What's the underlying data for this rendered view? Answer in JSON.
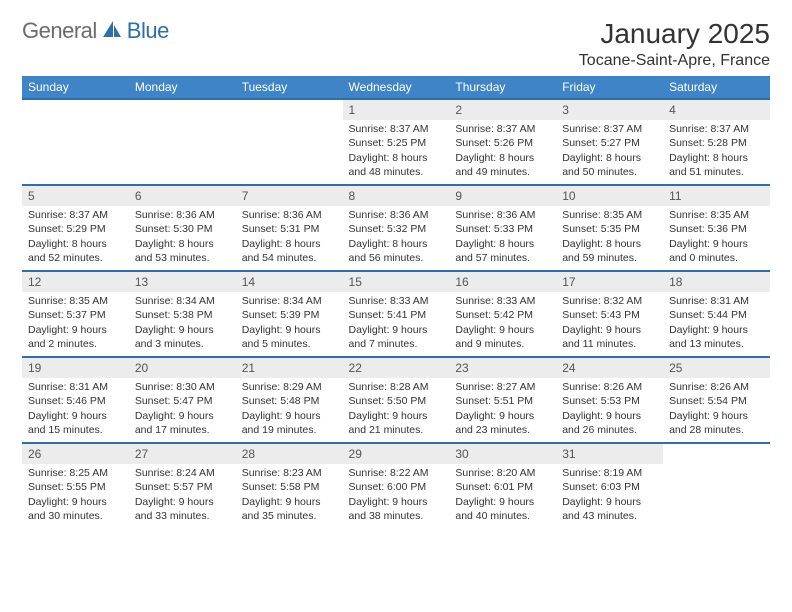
{
  "brand": {
    "general": "General",
    "blue": "Blue"
  },
  "title": "January 2025",
  "location": "Tocane-Saint-Apre, France",
  "colors": {
    "header_bg": "#3e84c6",
    "header_text": "#ffffff",
    "accent_border": "#2f6fa8",
    "daynum_bg": "#ececec",
    "body_text": "#333333",
    "logo_gray": "#6b6b6b",
    "logo_blue": "#2f6fa8",
    "page_bg": "#ffffff"
  },
  "typography": {
    "month_title_fontsize": 28,
    "location_fontsize": 16,
    "dayhead_fontsize": 12,
    "cell_fontsize": 10.5,
    "logo_fontsize": 22
  },
  "day_names": [
    "Sunday",
    "Monday",
    "Tuesday",
    "Wednesday",
    "Thursday",
    "Friday",
    "Saturday"
  ],
  "weeks": [
    [
      {
        "n": "",
        "sr": "",
        "ss": "",
        "dl": ""
      },
      {
        "n": "",
        "sr": "",
        "ss": "",
        "dl": ""
      },
      {
        "n": "",
        "sr": "",
        "ss": "",
        "dl": ""
      },
      {
        "n": "1",
        "sr": "Sunrise: 8:37 AM",
        "ss": "Sunset: 5:25 PM",
        "dl": "Daylight: 8 hours and 48 minutes."
      },
      {
        "n": "2",
        "sr": "Sunrise: 8:37 AM",
        "ss": "Sunset: 5:26 PM",
        "dl": "Daylight: 8 hours and 49 minutes."
      },
      {
        "n": "3",
        "sr": "Sunrise: 8:37 AM",
        "ss": "Sunset: 5:27 PM",
        "dl": "Daylight: 8 hours and 50 minutes."
      },
      {
        "n": "4",
        "sr": "Sunrise: 8:37 AM",
        "ss": "Sunset: 5:28 PM",
        "dl": "Daylight: 8 hours and 51 minutes."
      }
    ],
    [
      {
        "n": "5",
        "sr": "Sunrise: 8:37 AM",
        "ss": "Sunset: 5:29 PM",
        "dl": "Daylight: 8 hours and 52 minutes."
      },
      {
        "n": "6",
        "sr": "Sunrise: 8:36 AM",
        "ss": "Sunset: 5:30 PM",
        "dl": "Daylight: 8 hours and 53 minutes."
      },
      {
        "n": "7",
        "sr": "Sunrise: 8:36 AM",
        "ss": "Sunset: 5:31 PM",
        "dl": "Daylight: 8 hours and 54 minutes."
      },
      {
        "n": "8",
        "sr": "Sunrise: 8:36 AM",
        "ss": "Sunset: 5:32 PM",
        "dl": "Daylight: 8 hours and 56 minutes."
      },
      {
        "n": "9",
        "sr": "Sunrise: 8:36 AM",
        "ss": "Sunset: 5:33 PM",
        "dl": "Daylight: 8 hours and 57 minutes."
      },
      {
        "n": "10",
        "sr": "Sunrise: 8:35 AM",
        "ss": "Sunset: 5:35 PM",
        "dl": "Daylight: 8 hours and 59 minutes."
      },
      {
        "n": "11",
        "sr": "Sunrise: 8:35 AM",
        "ss": "Sunset: 5:36 PM",
        "dl": "Daylight: 9 hours and 0 minutes."
      }
    ],
    [
      {
        "n": "12",
        "sr": "Sunrise: 8:35 AM",
        "ss": "Sunset: 5:37 PM",
        "dl": "Daylight: 9 hours and 2 minutes."
      },
      {
        "n": "13",
        "sr": "Sunrise: 8:34 AM",
        "ss": "Sunset: 5:38 PM",
        "dl": "Daylight: 9 hours and 3 minutes."
      },
      {
        "n": "14",
        "sr": "Sunrise: 8:34 AM",
        "ss": "Sunset: 5:39 PM",
        "dl": "Daylight: 9 hours and 5 minutes."
      },
      {
        "n": "15",
        "sr": "Sunrise: 8:33 AM",
        "ss": "Sunset: 5:41 PM",
        "dl": "Daylight: 9 hours and 7 minutes."
      },
      {
        "n": "16",
        "sr": "Sunrise: 8:33 AM",
        "ss": "Sunset: 5:42 PM",
        "dl": "Daylight: 9 hours and 9 minutes."
      },
      {
        "n": "17",
        "sr": "Sunrise: 8:32 AM",
        "ss": "Sunset: 5:43 PM",
        "dl": "Daylight: 9 hours and 11 minutes."
      },
      {
        "n": "18",
        "sr": "Sunrise: 8:31 AM",
        "ss": "Sunset: 5:44 PM",
        "dl": "Daylight: 9 hours and 13 minutes."
      }
    ],
    [
      {
        "n": "19",
        "sr": "Sunrise: 8:31 AM",
        "ss": "Sunset: 5:46 PM",
        "dl": "Daylight: 9 hours and 15 minutes."
      },
      {
        "n": "20",
        "sr": "Sunrise: 8:30 AM",
        "ss": "Sunset: 5:47 PM",
        "dl": "Daylight: 9 hours and 17 minutes."
      },
      {
        "n": "21",
        "sr": "Sunrise: 8:29 AM",
        "ss": "Sunset: 5:48 PM",
        "dl": "Daylight: 9 hours and 19 minutes."
      },
      {
        "n": "22",
        "sr": "Sunrise: 8:28 AM",
        "ss": "Sunset: 5:50 PM",
        "dl": "Daylight: 9 hours and 21 minutes."
      },
      {
        "n": "23",
        "sr": "Sunrise: 8:27 AM",
        "ss": "Sunset: 5:51 PM",
        "dl": "Daylight: 9 hours and 23 minutes."
      },
      {
        "n": "24",
        "sr": "Sunrise: 8:26 AM",
        "ss": "Sunset: 5:53 PM",
        "dl": "Daylight: 9 hours and 26 minutes."
      },
      {
        "n": "25",
        "sr": "Sunrise: 8:26 AM",
        "ss": "Sunset: 5:54 PM",
        "dl": "Daylight: 9 hours and 28 minutes."
      }
    ],
    [
      {
        "n": "26",
        "sr": "Sunrise: 8:25 AM",
        "ss": "Sunset: 5:55 PM",
        "dl": "Daylight: 9 hours and 30 minutes."
      },
      {
        "n": "27",
        "sr": "Sunrise: 8:24 AM",
        "ss": "Sunset: 5:57 PM",
        "dl": "Daylight: 9 hours and 33 minutes."
      },
      {
        "n": "28",
        "sr": "Sunrise: 8:23 AM",
        "ss": "Sunset: 5:58 PM",
        "dl": "Daylight: 9 hours and 35 minutes."
      },
      {
        "n": "29",
        "sr": "Sunrise: 8:22 AM",
        "ss": "Sunset: 6:00 PM",
        "dl": "Daylight: 9 hours and 38 minutes."
      },
      {
        "n": "30",
        "sr": "Sunrise: 8:20 AM",
        "ss": "Sunset: 6:01 PM",
        "dl": "Daylight: 9 hours and 40 minutes."
      },
      {
        "n": "31",
        "sr": "Sunrise: 8:19 AM",
        "ss": "Sunset: 6:03 PM",
        "dl": "Daylight: 9 hours and 43 minutes."
      },
      {
        "n": "",
        "sr": "",
        "ss": "",
        "dl": ""
      }
    ]
  ]
}
